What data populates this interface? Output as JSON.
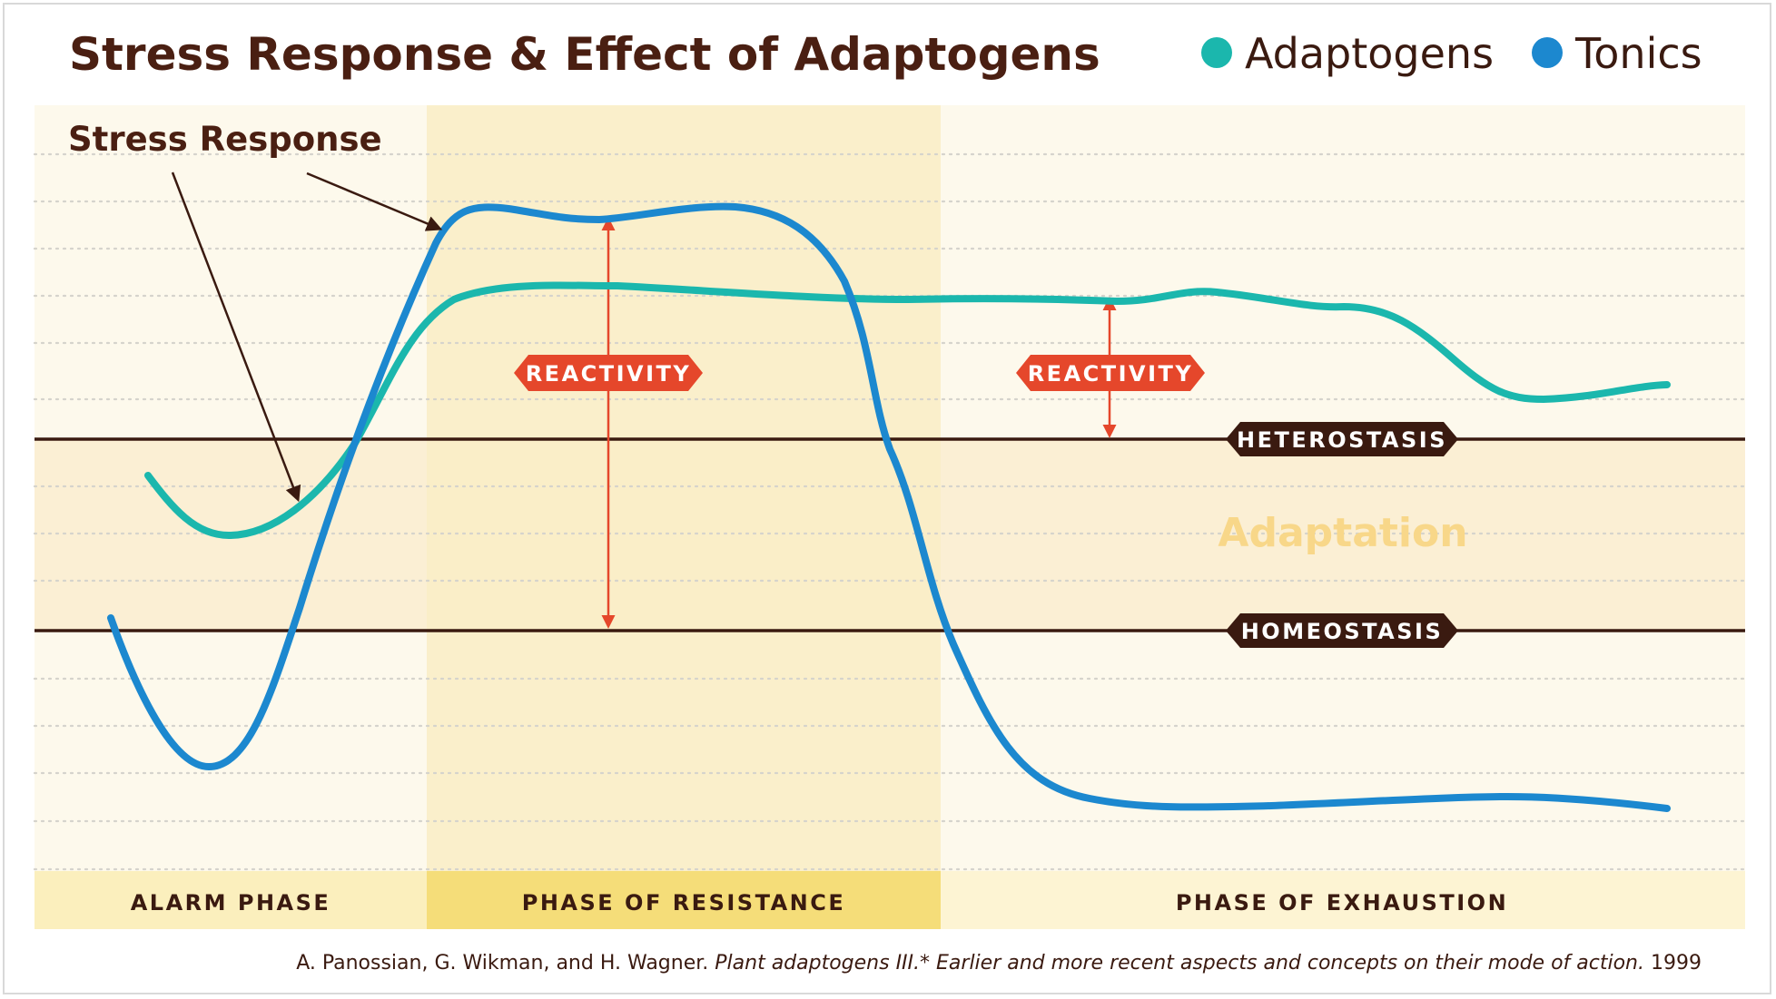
{
  "title": "Stress Response & Effect of Adaptogens",
  "legend": [
    {
      "label": "Adaptogens",
      "color": "#1bb7ad"
    },
    {
      "label": "Tonics",
      "color": "#1c88cf"
    }
  ],
  "stress_response_label": "Stress Response",
  "reactivity_label": "REACTIVITY",
  "heterostasis_label": "HETEROSTASIS",
  "homeostasis_label": "HOMEOSTASIS",
  "adaptation_label": "Adaptation",
  "phases": [
    "ALARM PHASE",
    "PHASE OF RESISTANCE",
    "PHASE OF EXHAUSTION"
  ],
  "citation": {
    "authors": "A. Panossian, G. Wikman, and H. Wagner.",
    "title": "Plant adaptogens III.* Earlier and more recent aspects and concepts on their mode of action.",
    "year": "1999"
  },
  "colors": {
    "title": "#4a1f12",
    "arrow": "#e5472b",
    "dark_pill": "#3a1a10",
    "resistance_band": "#f6df7c",
    "panel_band": "#fcf5dc"
  }
}
